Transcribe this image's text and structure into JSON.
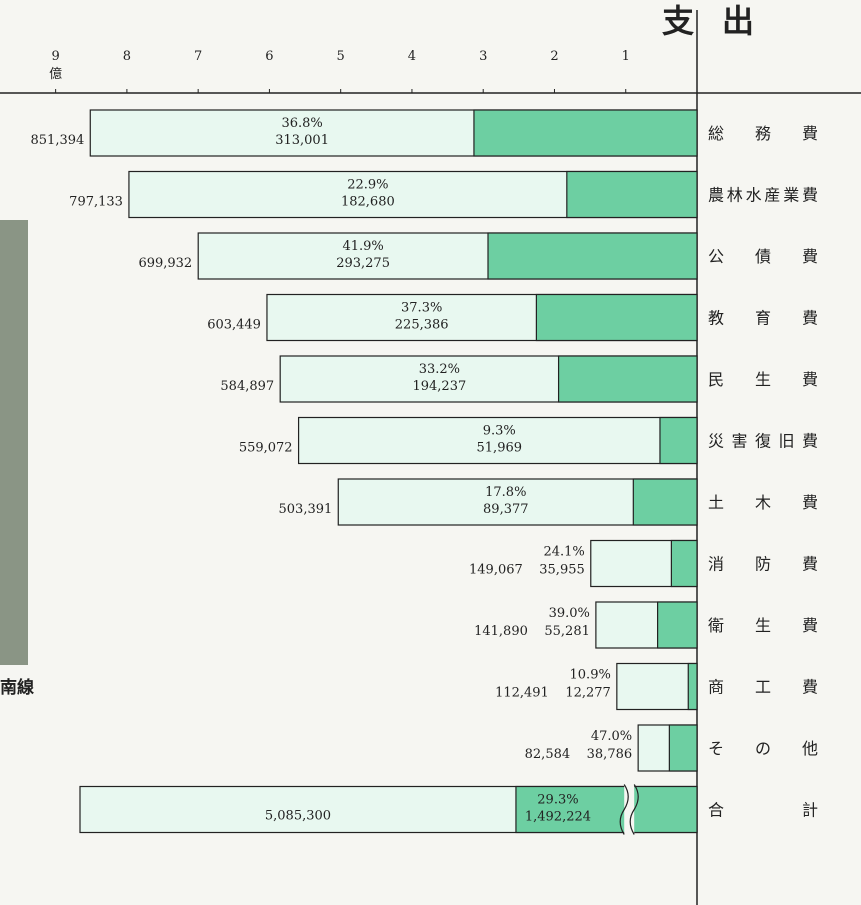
{
  "chart_data": {
    "type": "bar",
    "title": "支出",
    "orientation": "horizontal-left",
    "caption": "南線",
    "x_unit": "億",
    "categories": [
      "総務費",
      "農林水産業費",
      "公債費",
      "教育費",
      "民生費",
      "災害復旧費",
      "土木費",
      "消防費",
      "衛生費",
      "商工費",
      "その他",
      "合計"
    ],
    "values": [
      851394,
      797133,
      699932,
      603449,
      584897,
      559072,
      503391,
      149067,
      141890,
      112491,
      82584,
      5085300
    ],
    "value_labels": [
      "851,394",
      "797,133",
      "699,932",
      "603,449",
      "584,897",
      "559,072",
      "503,391",
      "149,067",
      "141,890",
      "112,491",
      "82,584",
      "5,085,300"
    ],
    "portion_values": [
      313001,
      182680,
      293275,
      225386,
      194237,
      51969,
      89377,
      35955,
      55281,
      12277,
      38786,
      1492224
    ],
    "portion_value_labels": [
      "313,001",
      "182,680",
      "293,275",
      "225,386",
      "194,237",
      "51,969",
      "89,377",
      "35,955",
      "55,281",
      "12,277",
      "38,786",
      "1,492,224"
    ],
    "portion_shares": [
      36.8,
      22.9,
      41.9,
      37.3,
      33.2,
      9.3,
      17.8,
      24.1,
      39.0,
      10.9,
      47.0,
      29.3
    ],
    "portion_share_labels": [
      "36.8%",
      "22.9%",
      "41.9%",
      "37.3%",
      "33.2%",
      "9.3%",
      "17.8%",
      "24.1%",
      "39.0%",
      "10.9%",
      "47.0%",
      "29.3%"
    ],
    "color": "#e8f8f0",
    "portion_color": "#6dcfa2",
    "xlim": [
      0,
      950000
    ],
    "xticks": [
      {
        "value": 900000,
        "label": "9"
      },
      {
        "value": 800000,
        "label": "8"
      },
      {
        "value": 700000,
        "label": "7"
      },
      {
        "value": 600000,
        "label": "6"
      },
      {
        "value": 500000,
        "label": "5"
      },
      {
        "value": 400000,
        "label": "4"
      },
      {
        "value": 300000,
        "label": "3"
      },
      {
        "value": 200000,
        "label": "2"
      },
      {
        "value": 100000,
        "label": "1"
      }
    ]
  }
}
